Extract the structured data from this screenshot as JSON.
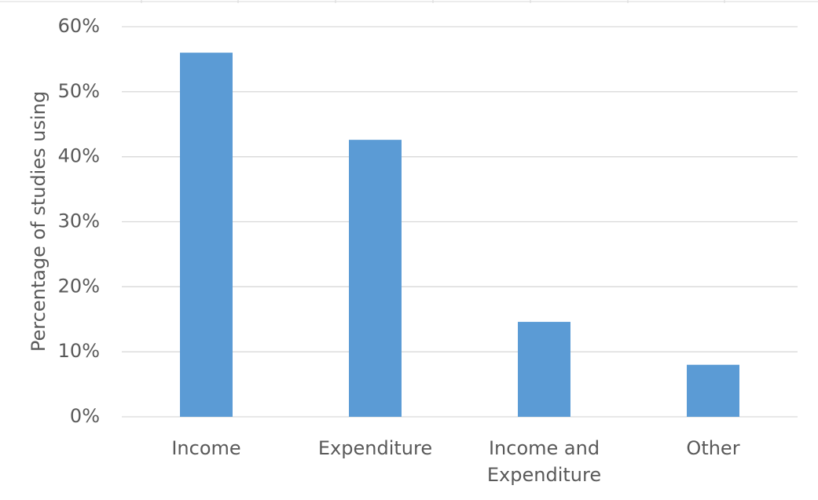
{
  "chart_data": {
    "type": "bar",
    "y_label": "Percentage of studies using",
    "categories": [
      "Income",
      "Expenditure",
      "Income and Expenditure",
      "Other"
    ],
    "values": [
      56,
      42.6,
      14.6,
      8
    ],
    "color": "#5b9bd5",
    "ylim": [
      0,
      60
    ],
    "yticks": [
      {
        "value": 0,
        "label": "0%"
      },
      {
        "value": 10,
        "label": "10%"
      },
      {
        "value": 20,
        "label": "20%"
      },
      {
        "value": 30,
        "label": "30%"
      },
      {
        "value": 40,
        "label": "40%"
      },
      {
        "value": 50,
        "label": "50%"
      },
      {
        "value": 60,
        "label": "60%"
      }
    ],
    "grid": true
  }
}
